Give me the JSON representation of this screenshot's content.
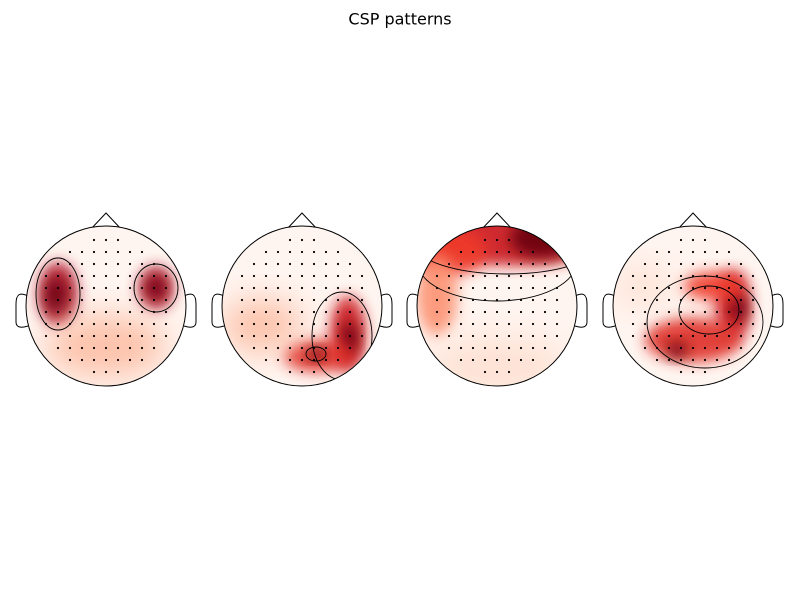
{
  "title": "CSP patterns"
}
